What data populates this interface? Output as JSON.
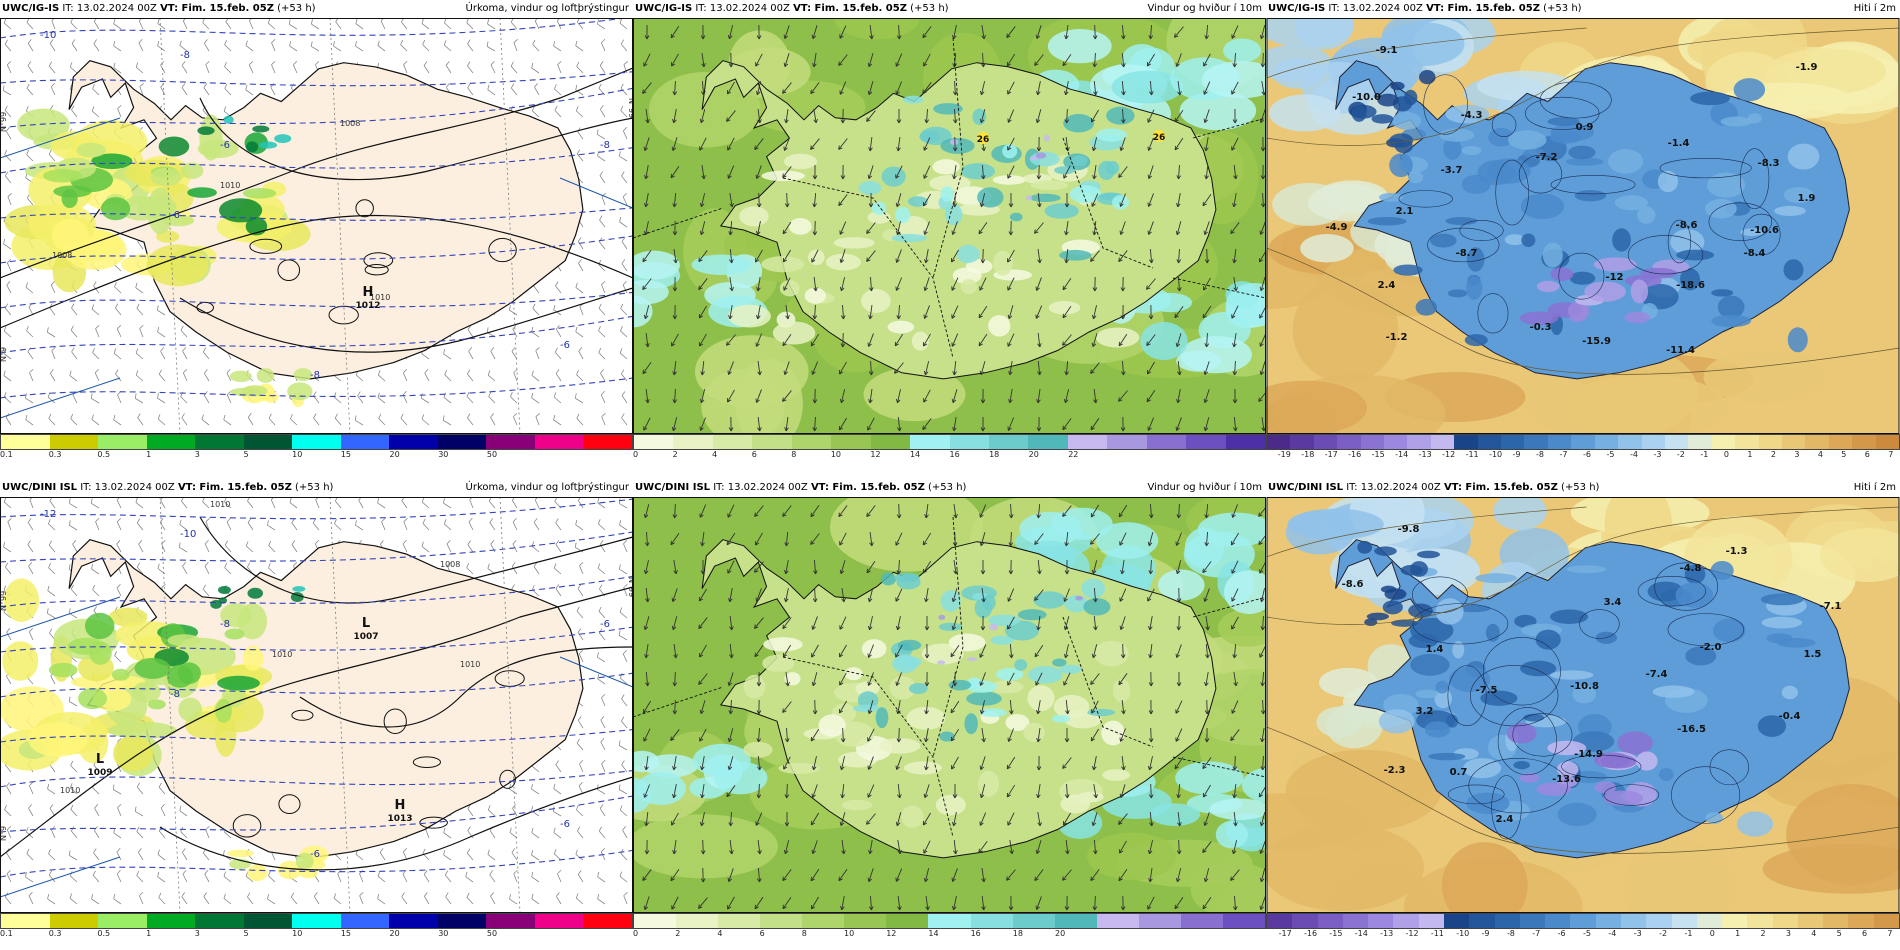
{
  "rows": [
    {
      "id": "ig",
      "panels": [
        {
          "kind": "precip",
          "model": "UWC/IG-IS",
          "it_label": "IT:",
          "it_value": "13.02.2024 00Z",
          "vt_label": "VT: Fim. 15.feb. 05Z",
          "lead": "(+53 h)",
          "param": "Úrkoma, vindur og loftþrýstingur",
          "colorbar_colors": [
            "#ffff99",
            "#cccc00",
            "#99ee66",
            "#00aa22",
            "#007733",
            "#005533",
            "#00ffee",
            "#3366ff",
            "#0000aa",
            "#000066",
            "#880077",
            "#ee0088",
            "#ff0011"
          ],
          "colorbar_ticks": [
            "0.1",
            "0.3",
            "0.5",
            "1",
            "3",
            "5",
            "10",
            "15",
            "20",
            "30",
            "50"
          ],
          "pressure_labels": [
            {
              "text": "1008",
              "x": 340,
              "y": 108
            },
            {
              "text": "1010",
              "x": 220,
              "y": 170
            },
            {
              "text": "1008",
              "x": 52,
              "y": 240
            },
            {
              "text": "1010",
              "x": 370,
              "y": 282
            }
          ],
          "blue_labels": [
            "-10",
            "-8",
            "-6",
            "-8",
            "-6",
            "-6",
            "-8"
          ],
          "centers": [
            {
              "type": "H",
              "value": "1012"
            }
          ]
        },
        {
          "kind": "wind",
          "model": "UWC/IG-IS",
          "it_label": "IT:",
          "it_value": "13.02.2024 00Z",
          "vt_label": "VT: Fim. 15.feb. 05Z",
          "lead": "(+53 h)",
          "param": "Vindur og hviður í 10m",
          "colorbar_colors": [
            "#f4f9e0",
            "#e8f2c4",
            "#d7eaa6",
            "#c3e089",
            "#aed46c",
            "#98c655",
            "#82b844",
            "#9ff2f0",
            "#88dfe0",
            "#6ccccc",
            "#50b8b8",
            "#c8b8f0",
            "#a898e0",
            "#8870d0",
            "#6a50c0",
            "#4c30a8"
          ],
          "colorbar_ticks": [
            "0",
            "2",
            "4",
            "6",
            "8",
            "10",
            "12",
            "14",
            "16",
            "18",
            "20",
            "22"
          ],
          "gust_labels": [
            "26",
            "26"
          ]
        },
        {
          "kind": "temp",
          "model": "UWC/IG-IS",
          "it_label": "IT:",
          "it_value": "13.02.2024 00Z",
          "vt_label": "VT: Fim. 15.feb. 05Z",
          "lead": "(+53 h)",
          "param": "Hiti í 2m",
          "colorbar_colors": [
            "#4b2a8a",
            "#5a3aa0",
            "#6a4cb4",
            "#7a5ec4",
            "#8a72d2",
            "#9c88de",
            "#b0a0e8",
            "#c4b8f0",
            "#1a4488",
            "#225599",
            "#2c66aa",
            "#3a78bb",
            "#4a8acb",
            "#5e9dd8",
            "#76b0e2",
            "#90c2ea",
            "#aad2f0",
            "#c6e2f0",
            "#e0ecd8",
            "#f6f0b0",
            "#f2e49a",
            "#eed888",
            "#e8c876",
            "#e2b866",
            "#dca858",
            "#d4984a",
            "#cc8a3e"
          ],
          "colorbar_ticks": [
            "-19",
            "-18",
            "-17",
            "-16",
            "-15",
            "-14",
            "-13",
            "-12",
            "-11",
            "-10",
            "-9",
            "-8",
            "-7",
            "-6",
            "-5",
            "-4",
            "-3",
            "-2",
            "-1",
            "0",
            "1",
            "2",
            "3",
            "4",
            "5",
            "6",
            "7"
          ],
          "temp_labels": [
            "-9.1",
            "-10.0",
            "-4.3",
            "0.9",
            "-1.4",
            "-1.9",
            "-7.2",
            "-3.7",
            "-8.3",
            "1.9",
            "2.1",
            "-4.9",
            "-8.6",
            "-10.6",
            "-8.7",
            "-8.4",
            "-12",
            "-18.6",
            "2.4",
            "-0.3",
            "-15.9",
            "-11.4",
            "-1.2"
          ]
        }
      ]
    },
    {
      "id": "dini",
      "panels": [
        {
          "kind": "precip",
          "model": "UWC/DINI ISL",
          "it_label": "IT:",
          "it_value": "13.02.2024 00Z",
          "vt_label": "VT: Fim. 15.feb. 05Z",
          "lead": "(+53 h)",
          "param": "Úrkoma, vindur og loftþrýstingur",
          "colorbar_colors": [
            "#ffff99",
            "#cccc00",
            "#99ee66",
            "#00aa22",
            "#007733",
            "#005533",
            "#00ffee",
            "#3366ff",
            "#0000aa",
            "#000066",
            "#880077",
            "#ee0088",
            "#ff0011"
          ],
          "colorbar_ticks": [
            "0.1",
            "0.3",
            "0.5",
            "1",
            "3",
            "5",
            "10",
            "15",
            "20",
            "30",
            "50"
          ],
          "pressure_labels": [
            {
              "text": "1010",
              "x": 210,
              "y": 10
            },
            {
              "text": "1008",
              "x": 440,
              "y": 70
            },
            {
              "text": "1010",
              "x": 272,
              "y": 160
            },
            {
              "text": "1010",
              "x": 460,
              "y": 170
            },
            {
              "text": "1010",
              "x": 60,
              "y": 296
            }
          ],
          "blue_labels": [
            "-12",
            "-10",
            "-8",
            "-6",
            "-8",
            "-6",
            "-6"
          ],
          "centers": [
            {
              "type": "L",
              "value": "1007"
            },
            {
              "type": "L",
              "value": "1009"
            },
            {
              "type": "H",
              "value": "1013"
            }
          ]
        },
        {
          "kind": "wind",
          "model": "UWC/DINI ISL",
          "it_label": "IT:",
          "it_value": "13.02.2024 00Z",
          "vt_label": "VT: Fim. 15.feb. 05Z",
          "lead": "(+53 h)",
          "param": "Vindur og hviður í 10m",
          "colorbar_colors": [
            "#f4f9e0",
            "#e8f2c4",
            "#d7eaa6",
            "#c3e089",
            "#aed46c",
            "#98c655",
            "#82b844",
            "#9ff2f0",
            "#88dfe0",
            "#6ccccc",
            "#50b8b8",
            "#c8b8f0",
            "#a898e0",
            "#8870d0",
            "#6a50c0"
          ],
          "colorbar_ticks": [
            "0",
            "2",
            "4",
            "6",
            "8",
            "10",
            "12",
            "14",
            "16",
            "18",
            "20"
          ],
          "gust_labels": []
        },
        {
          "kind": "temp",
          "model": "UWC/DINI ISL",
          "it_label": "IT:",
          "it_value": "13.02.2024 00Z",
          "vt_label": "VT: Fim. 15.feb. 05Z",
          "lead": "(+53 h)",
          "param": "Hiti í 2m",
          "colorbar_colors": [
            "#5a3aa0",
            "#6a4cb4",
            "#7a5ec4",
            "#8a72d2",
            "#9c88de",
            "#b0a0e8",
            "#c4b8f0",
            "#1a4488",
            "#225599",
            "#2c66aa",
            "#3a78bb",
            "#4a8acb",
            "#5e9dd8",
            "#76b0e2",
            "#90c2ea",
            "#aad2f0",
            "#c6e2f0",
            "#e0ecd8",
            "#f6f0b0",
            "#f2e49a",
            "#eed888",
            "#e8c876",
            "#e2b866",
            "#dca858",
            "#d4984a"
          ],
          "colorbar_ticks": [
            "-17",
            "-16",
            "-15",
            "-14",
            "-13",
            "-12",
            "-11",
            "-10",
            "-9",
            "-8",
            "-7",
            "-6",
            "-5",
            "-4",
            "-3",
            "-2",
            "-1",
            "0",
            "1",
            "2",
            "3",
            "4",
            "5",
            "6",
            "7"
          ],
          "temp_labels": [
            "-9.8",
            "-8.6",
            "-1.3",
            "-4.8",
            "-7.1",
            "3.4",
            "1.4",
            "-2.0",
            "1.5",
            "-7.4",
            "-10.8",
            "-7.5",
            "-0.4",
            "-16.5",
            "3.2",
            "-14.9",
            "-2.3",
            "0.7",
            "-13.6",
            "2.4"
          ]
        }
      ]
    }
  ],
  "axis_ticks": {
    "lat_left": "N°99",
    "lat_right": "N°99",
    "lat_mid": "N°9"
  }
}
